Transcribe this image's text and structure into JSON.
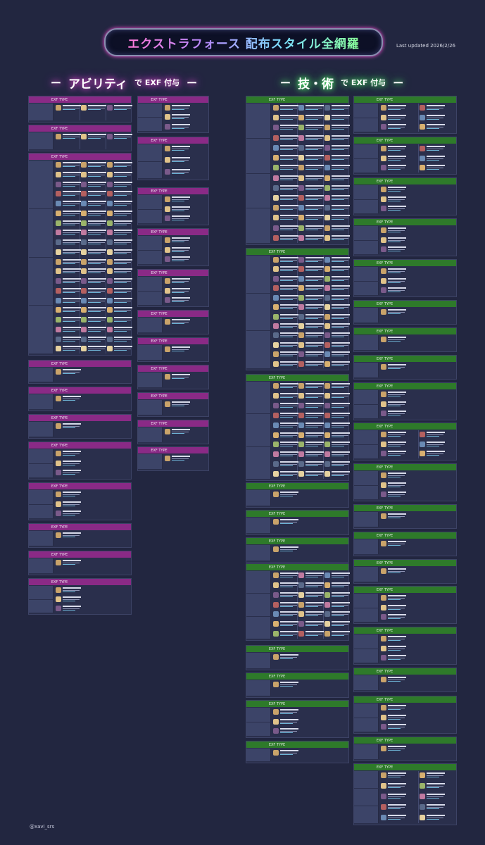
{
  "title": "エクストラフォース 配布スタイル全網羅",
  "last_updated": "Last updated  2026/2/26",
  "credit": "@xavi_srs",
  "ability_heading": {
    "main": "アビリティ",
    "sub": "で EXF 付与",
    "dash": "ー"
  },
  "skill_heading": {
    "main": "技・術",
    "sub": "で EXF 付与",
    "dash": "ー"
  },
  "exf_type_label": "EXF TYPE",
  "colors": {
    "ability": "#8a2a86",
    "skill": "#2e7a2a",
    "background": "#222640"
  }
}
